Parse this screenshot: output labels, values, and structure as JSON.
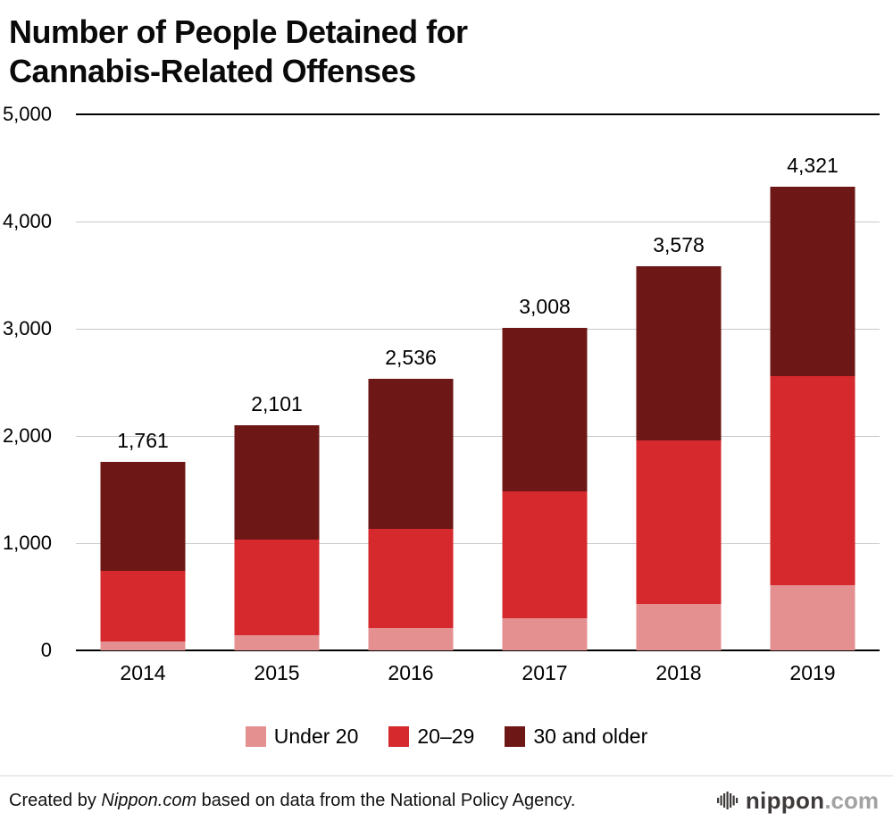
{
  "title": {
    "line1": "Number of People Detained for",
    "line2": "Cannabis-Related Offenses"
  },
  "chart_data": {
    "type": "bar",
    "stacked": true,
    "title": "Number of People Detained for Cannabis-Related Offenses",
    "categories": [
      "2014",
      "2015",
      "2016",
      "2017",
      "2018",
      "2019"
    ],
    "series": [
      {
        "name": "Under 20",
        "color": "#e59090",
        "values": [
          80,
          140,
          210,
          297,
          429,
          609
        ]
      },
      {
        "name": "20–29",
        "color": "#d5292d",
        "values": [
          660,
          895,
          925,
          1183,
          1530,
          1950
        ]
      },
      {
        "name": "30 and older",
        "color": "#6d1716",
        "values": [
          1021,
          1066,
          1401,
          1528,
          1619,
          1762
        ]
      }
    ],
    "totals": [
      "1,761",
      "2,101",
      "2,536",
      "3,008",
      "3,578",
      "4,321"
    ],
    "total_values": [
      1761,
      2101,
      2536,
      3008,
      3578,
      4321
    ],
    "ylim": [
      0,
      5000
    ],
    "yticks": [
      {
        "label": "0",
        "value": 0
      },
      {
        "label": "1,000",
        "value": 1000
      },
      {
        "label": "2,000",
        "value": 2000
      },
      {
        "label": "3,000",
        "value": 3000
      },
      {
        "label": "4,000",
        "value": 4000
      },
      {
        "label": "5,000",
        "value": 5000
      }
    ],
    "grid": true,
    "legend_position": "bottom"
  },
  "footer": {
    "prefix": "Created by ",
    "source_name": "Nippon.com",
    "suffix": " based on data from the National Policy Agency."
  },
  "logo": {
    "name": "nippon",
    "tld": ".com"
  }
}
